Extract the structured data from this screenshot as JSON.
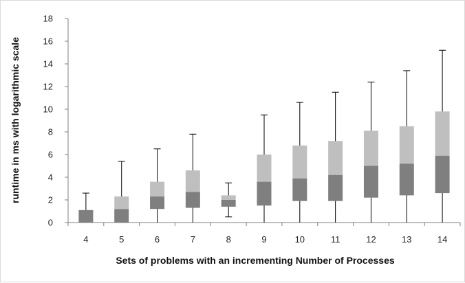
{
  "chart_data": {
    "type": "box",
    "title": "",
    "xlabel": "Sets of problems with an incrementing Number of Processes",
    "ylabel": "runtime in ms  with logarithmic scale",
    "ylim": [
      0,
      18
    ],
    "yticks": [
      0,
      2,
      4,
      6,
      8,
      10,
      12,
      14,
      16,
      18
    ],
    "grid": false,
    "legend": "none",
    "categories": [
      "4",
      "5",
      "6",
      "7",
      "8",
      "9",
      "10",
      "11",
      "12",
      "13",
      "14"
    ],
    "boxes": [
      {
        "category": "4",
        "min": 0,
        "q1": 0,
        "median": 1.1,
        "q3": 1.1,
        "max": 2.6
      },
      {
        "category": "5",
        "min": 0,
        "q1": 0,
        "median": 1.2,
        "q3": 2.3,
        "max": 5.4
      },
      {
        "category": "6",
        "min": 0,
        "q1": 1.2,
        "median": 2.3,
        "q3": 3.6,
        "max": 6.5
      },
      {
        "category": "7",
        "min": 0,
        "q1": 1.3,
        "median": 2.7,
        "q3": 4.6,
        "max": 7.8
      },
      {
        "category": "8",
        "min": 0.5,
        "q1": 1.4,
        "median": 2.0,
        "q3": 2.4,
        "max": 3.5
      },
      {
        "category": "9",
        "min": 0,
        "q1": 1.5,
        "median": 3.6,
        "q3": 6.0,
        "max": 9.5
      },
      {
        "category": "10",
        "min": 0,
        "q1": 1.9,
        "median": 3.9,
        "q3": 6.8,
        "max": 10.6
      },
      {
        "category": "11",
        "min": 0,
        "q1": 1.9,
        "median": 4.2,
        "q3": 7.2,
        "max": 11.5
      },
      {
        "category": "12",
        "min": 0,
        "q1": 2.2,
        "median": 5.0,
        "q3": 8.1,
        "max": 12.4
      },
      {
        "category": "13",
        "min": 0,
        "q1": 2.4,
        "median": 5.2,
        "q3": 8.5,
        "max": 13.4
      },
      {
        "category": "14",
        "min": 0,
        "q1": 2.6,
        "median": 5.9,
        "q3": 9.8,
        "max": 15.2
      }
    ],
    "colors": {
      "lower_box": "#7f7f7f",
      "upper_box": "#bfbfbf",
      "whisker": "#000000",
      "axis": "#7f7f7f"
    }
  }
}
